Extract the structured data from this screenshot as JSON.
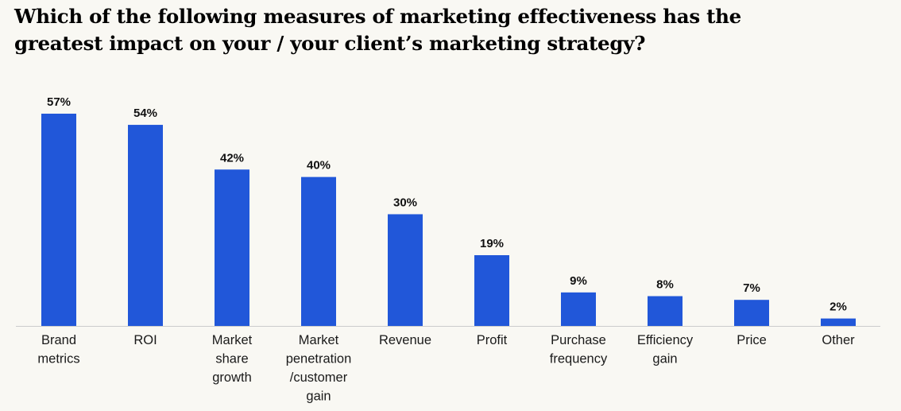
{
  "chart_data": {
    "type": "bar",
    "title_lines": [
      "Which of the following measures of marketing effectiveness has the",
      "greatest impact on your / your client’s marketing strategy?"
    ],
    "categories": [
      "Brand metrics",
      "ROI",
      "Market share growth",
      "Market penetration /customer gain",
      "Revenue",
      "Profit",
      "Purchase frequency",
      "Efficiency gain",
      "Price",
      "Other"
    ],
    "category_lines": [
      [
        "Brand",
        "metrics"
      ],
      [
        "ROI"
      ],
      [
        "Market",
        "share",
        "growth"
      ],
      [
        "Market",
        "penetration",
        "/customer",
        "gain"
      ],
      [
        "Revenue"
      ],
      [
        "Profit"
      ],
      [
        "Purchase",
        "frequency"
      ],
      [
        "Efficiency",
        "gain"
      ],
      [
        "Price"
      ],
      [
        "Other"
      ]
    ],
    "values": [
      57,
      54,
      42,
      40,
      30,
      19,
      9,
      8,
      7,
      2
    ],
    "value_labels": [
      "57%",
      "54%",
      "42%",
      "40%",
      "30%",
      "19%",
      "9%",
      "8%",
      "7%",
      "2%"
    ],
    "unit": "%",
    "ylim": [
      0,
      57
    ],
    "grid": false,
    "legend": "none",
    "colors": {
      "bar": "#2157d9",
      "background": "#f9f8f3",
      "baseline": "#cccccc",
      "text": "#111111"
    }
  }
}
